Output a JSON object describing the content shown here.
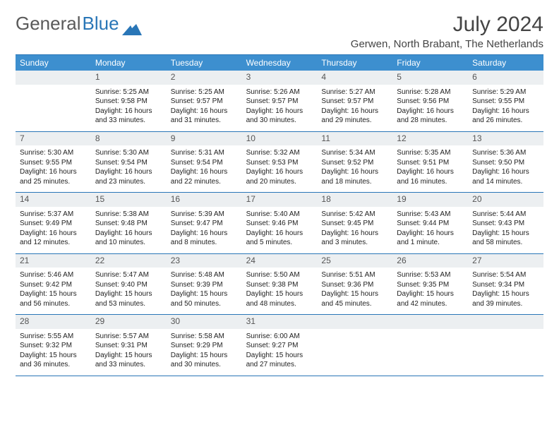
{
  "logo": {
    "text1": "General",
    "text2": "Blue"
  },
  "title": "July 2024",
  "location": "Gerwen, North Brabant, The Netherlands",
  "weekdays": [
    "Sunday",
    "Monday",
    "Tuesday",
    "Wednesday",
    "Thursday",
    "Friday",
    "Saturday"
  ],
  "colors": {
    "accent": "#2976b7",
    "header_bg": "#3d8fcf",
    "daynum_bg": "#eceff1"
  },
  "weeks": [
    [
      null,
      {
        "n": "1",
        "sr": "Sunrise: 5:25 AM",
        "ss": "Sunset: 9:58 PM",
        "d1": "Daylight: 16 hours",
        "d2": "and 33 minutes."
      },
      {
        "n": "2",
        "sr": "Sunrise: 5:25 AM",
        "ss": "Sunset: 9:57 PM",
        "d1": "Daylight: 16 hours",
        "d2": "and 31 minutes."
      },
      {
        "n": "3",
        "sr": "Sunrise: 5:26 AM",
        "ss": "Sunset: 9:57 PM",
        "d1": "Daylight: 16 hours",
        "d2": "and 30 minutes."
      },
      {
        "n": "4",
        "sr": "Sunrise: 5:27 AM",
        "ss": "Sunset: 9:57 PM",
        "d1": "Daylight: 16 hours",
        "d2": "and 29 minutes."
      },
      {
        "n": "5",
        "sr": "Sunrise: 5:28 AM",
        "ss": "Sunset: 9:56 PM",
        "d1": "Daylight: 16 hours",
        "d2": "and 28 minutes."
      },
      {
        "n": "6",
        "sr": "Sunrise: 5:29 AM",
        "ss": "Sunset: 9:55 PM",
        "d1": "Daylight: 16 hours",
        "d2": "and 26 minutes."
      }
    ],
    [
      {
        "n": "7",
        "sr": "Sunrise: 5:30 AM",
        "ss": "Sunset: 9:55 PM",
        "d1": "Daylight: 16 hours",
        "d2": "and 25 minutes."
      },
      {
        "n": "8",
        "sr": "Sunrise: 5:30 AM",
        "ss": "Sunset: 9:54 PM",
        "d1": "Daylight: 16 hours",
        "d2": "and 23 minutes."
      },
      {
        "n": "9",
        "sr": "Sunrise: 5:31 AM",
        "ss": "Sunset: 9:54 PM",
        "d1": "Daylight: 16 hours",
        "d2": "and 22 minutes."
      },
      {
        "n": "10",
        "sr": "Sunrise: 5:32 AM",
        "ss": "Sunset: 9:53 PM",
        "d1": "Daylight: 16 hours",
        "d2": "and 20 minutes."
      },
      {
        "n": "11",
        "sr": "Sunrise: 5:34 AM",
        "ss": "Sunset: 9:52 PM",
        "d1": "Daylight: 16 hours",
        "d2": "and 18 minutes."
      },
      {
        "n": "12",
        "sr": "Sunrise: 5:35 AM",
        "ss": "Sunset: 9:51 PM",
        "d1": "Daylight: 16 hours",
        "d2": "and 16 minutes."
      },
      {
        "n": "13",
        "sr": "Sunrise: 5:36 AM",
        "ss": "Sunset: 9:50 PM",
        "d1": "Daylight: 16 hours",
        "d2": "and 14 minutes."
      }
    ],
    [
      {
        "n": "14",
        "sr": "Sunrise: 5:37 AM",
        "ss": "Sunset: 9:49 PM",
        "d1": "Daylight: 16 hours",
        "d2": "and 12 minutes."
      },
      {
        "n": "15",
        "sr": "Sunrise: 5:38 AM",
        "ss": "Sunset: 9:48 PM",
        "d1": "Daylight: 16 hours",
        "d2": "and 10 minutes."
      },
      {
        "n": "16",
        "sr": "Sunrise: 5:39 AM",
        "ss": "Sunset: 9:47 PM",
        "d1": "Daylight: 16 hours",
        "d2": "and 8 minutes."
      },
      {
        "n": "17",
        "sr": "Sunrise: 5:40 AM",
        "ss": "Sunset: 9:46 PM",
        "d1": "Daylight: 16 hours",
        "d2": "and 5 minutes."
      },
      {
        "n": "18",
        "sr": "Sunrise: 5:42 AM",
        "ss": "Sunset: 9:45 PM",
        "d1": "Daylight: 16 hours",
        "d2": "and 3 minutes."
      },
      {
        "n": "19",
        "sr": "Sunrise: 5:43 AM",
        "ss": "Sunset: 9:44 PM",
        "d1": "Daylight: 16 hours",
        "d2": "and 1 minute."
      },
      {
        "n": "20",
        "sr": "Sunrise: 5:44 AM",
        "ss": "Sunset: 9:43 PM",
        "d1": "Daylight: 15 hours",
        "d2": "and 58 minutes."
      }
    ],
    [
      {
        "n": "21",
        "sr": "Sunrise: 5:46 AM",
        "ss": "Sunset: 9:42 PM",
        "d1": "Daylight: 15 hours",
        "d2": "and 56 minutes."
      },
      {
        "n": "22",
        "sr": "Sunrise: 5:47 AM",
        "ss": "Sunset: 9:40 PM",
        "d1": "Daylight: 15 hours",
        "d2": "and 53 minutes."
      },
      {
        "n": "23",
        "sr": "Sunrise: 5:48 AM",
        "ss": "Sunset: 9:39 PM",
        "d1": "Daylight: 15 hours",
        "d2": "and 50 minutes."
      },
      {
        "n": "24",
        "sr": "Sunrise: 5:50 AM",
        "ss": "Sunset: 9:38 PM",
        "d1": "Daylight: 15 hours",
        "d2": "and 48 minutes."
      },
      {
        "n": "25",
        "sr": "Sunrise: 5:51 AM",
        "ss": "Sunset: 9:36 PM",
        "d1": "Daylight: 15 hours",
        "d2": "and 45 minutes."
      },
      {
        "n": "26",
        "sr": "Sunrise: 5:53 AM",
        "ss": "Sunset: 9:35 PM",
        "d1": "Daylight: 15 hours",
        "d2": "and 42 minutes."
      },
      {
        "n": "27",
        "sr": "Sunrise: 5:54 AM",
        "ss": "Sunset: 9:34 PM",
        "d1": "Daylight: 15 hours",
        "d2": "and 39 minutes."
      }
    ],
    [
      {
        "n": "28",
        "sr": "Sunrise: 5:55 AM",
        "ss": "Sunset: 9:32 PM",
        "d1": "Daylight: 15 hours",
        "d2": "and 36 minutes."
      },
      {
        "n": "29",
        "sr": "Sunrise: 5:57 AM",
        "ss": "Sunset: 9:31 PM",
        "d1": "Daylight: 15 hours",
        "d2": "and 33 minutes."
      },
      {
        "n": "30",
        "sr": "Sunrise: 5:58 AM",
        "ss": "Sunset: 9:29 PM",
        "d1": "Daylight: 15 hours",
        "d2": "and 30 minutes."
      },
      {
        "n": "31",
        "sr": "Sunrise: 6:00 AM",
        "ss": "Sunset: 9:27 PM",
        "d1": "Daylight: 15 hours",
        "d2": "and 27 minutes."
      },
      null,
      null,
      null
    ]
  ]
}
